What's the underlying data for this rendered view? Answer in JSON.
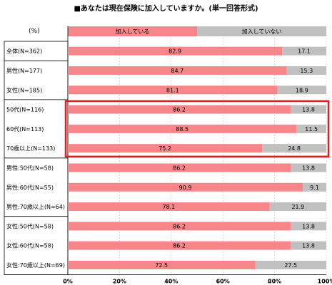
{
  "title": "■あなたは現在保険に加入していますか。(単一回答形式)",
  "unit_label": "(%)",
  "colors": {
    "joined": "#F7868A",
    "not_joined": "#C0C0C0",
    "highlight": "#E0201E"
  },
  "chart_data": {
    "type": "bar",
    "stacked": true,
    "orientation": "horizontal",
    "title": "■あなたは現在保険に加入していますか。(単一回答形式)",
    "xlabel": "",
    "ylabel": "(%)",
    "xlim": [
      0,
      100
    ],
    "x_ticks": [
      "0%",
      "20%",
      "40%",
      "60%",
      "80%",
      "100%"
    ],
    "grid": true,
    "legend": "top",
    "categories": [
      "全体(N=362)",
      "男性(N=177)",
      "女性(N=185)",
      "50代(N=116)",
      "60代(N=113)",
      "70歳以上(N=133)",
      "男性:50代(N=58)",
      "男性:60代(N=55)",
      "男性:70歳以上(N=64)",
      "女性:50代(N=58)",
      "女性:60代(N=58)",
      "女性:70歳以上(N=69)"
    ],
    "series": [
      {
        "name": "加入している",
        "color": "#F7868A",
        "values": [
          82.9,
          84.7,
          81.1,
          86.2,
          88.5,
          75.2,
          86.2,
          90.9,
          78.1,
          86.2,
          86.2,
          72.5
        ]
      },
      {
        "name": "加入していない",
        "color": "#C0C0C0",
        "values": [
          17.1,
          15.3,
          18.9,
          13.8,
          11.5,
          24.8,
          13.8,
          9.1,
          21.9,
          13.8,
          13.8,
          27.5
        ]
      }
    ],
    "group_dividers_after": [
      0,
      2,
      5,
      8
    ],
    "highlight_rows": [
      3,
      4,
      5
    ]
  }
}
